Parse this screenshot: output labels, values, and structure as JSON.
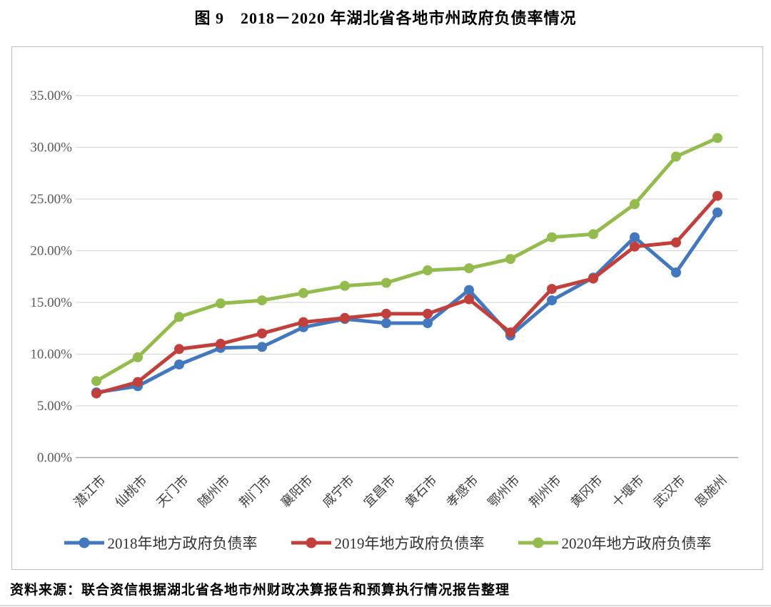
{
  "page": {
    "title": "图 9　2018－2020 年湖北省各地市州政府负债率情况",
    "source": "资料来源：联合资信根据湖北省各地市州财政决算报告和预算执行情况报告整理"
  },
  "chart_data": {
    "type": "line",
    "title": "图 9　2018－2020 年湖北省各地市州政府负债率情况",
    "categories": [
      "潜江市",
      "仙桃市",
      "天门市",
      "随州市",
      "荆门市",
      "襄阳市",
      "咸宁市",
      "宜昌市",
      "黄石市",
      "孝感市",
      "鄂州市",
      "荆州市",
      "黄冈市",
      "十堰市",
      "武汉市",
      "恩施州"
    ],
    "series": [
      {
        "name": "2018年地方政府负债率",
        "color": "#4478BE",
        "values": [
          6.3,
          6.9,
          9.0,
          10.6,
          10.7,
          12.6,
          13.4,
          13.0,
          13.0,
          16.2,
          11.8,
          15.2,
          17.4,
          21.3,
          17.9,
          23.7
        ]
      },
      {
        "name": "2019年地方政府负债率",
        "color": "#C1403C",
        "values": [
          6.2,
          7.3,
          10.5,
          11.0,
          12.0,
          13.1,
          13.5,
          13.9,
          13.9,
          15.3,
          12.1,
          16.3,
          17.3,
          20.4,
          20.8,
          25.3
        ]
      },
      {
        "name": "2020年地方政府负债率",
        "color": "#93BB4D",
        "values": [
          7.4,
          9.7,
          13.6,
          14.9,
          15.2,
          15.9,
          16.6,
          16.9,
          18.1,
          18.3,
          19.2,
          21.3,
          21.6,
          24.5,
          29.1,
          30.9
        ]
      }
    ],
    "ylim": [
      0,
      35
    ],
    "ytick_step": 5,
    "ytick_labels": [
      "0.00%",
      "5.00%",
      "10.00%",
      "15.00%",
      "20.00%",
      "25.00%",
      "30.00%",
      "35.00%"
    ],
    "xlabel": "",
    "ylabel": "",
    "grid": "horizontal",
    "legend_position": "bottom",
    "marker": "circle",
    "styles": {
      "gridline_color": "#d9d9d9",
      "axis_color": "#a6a6a6",
      "ytick_color": "#595959",
      "xtick_color": "#404040"
    }
  }
}
